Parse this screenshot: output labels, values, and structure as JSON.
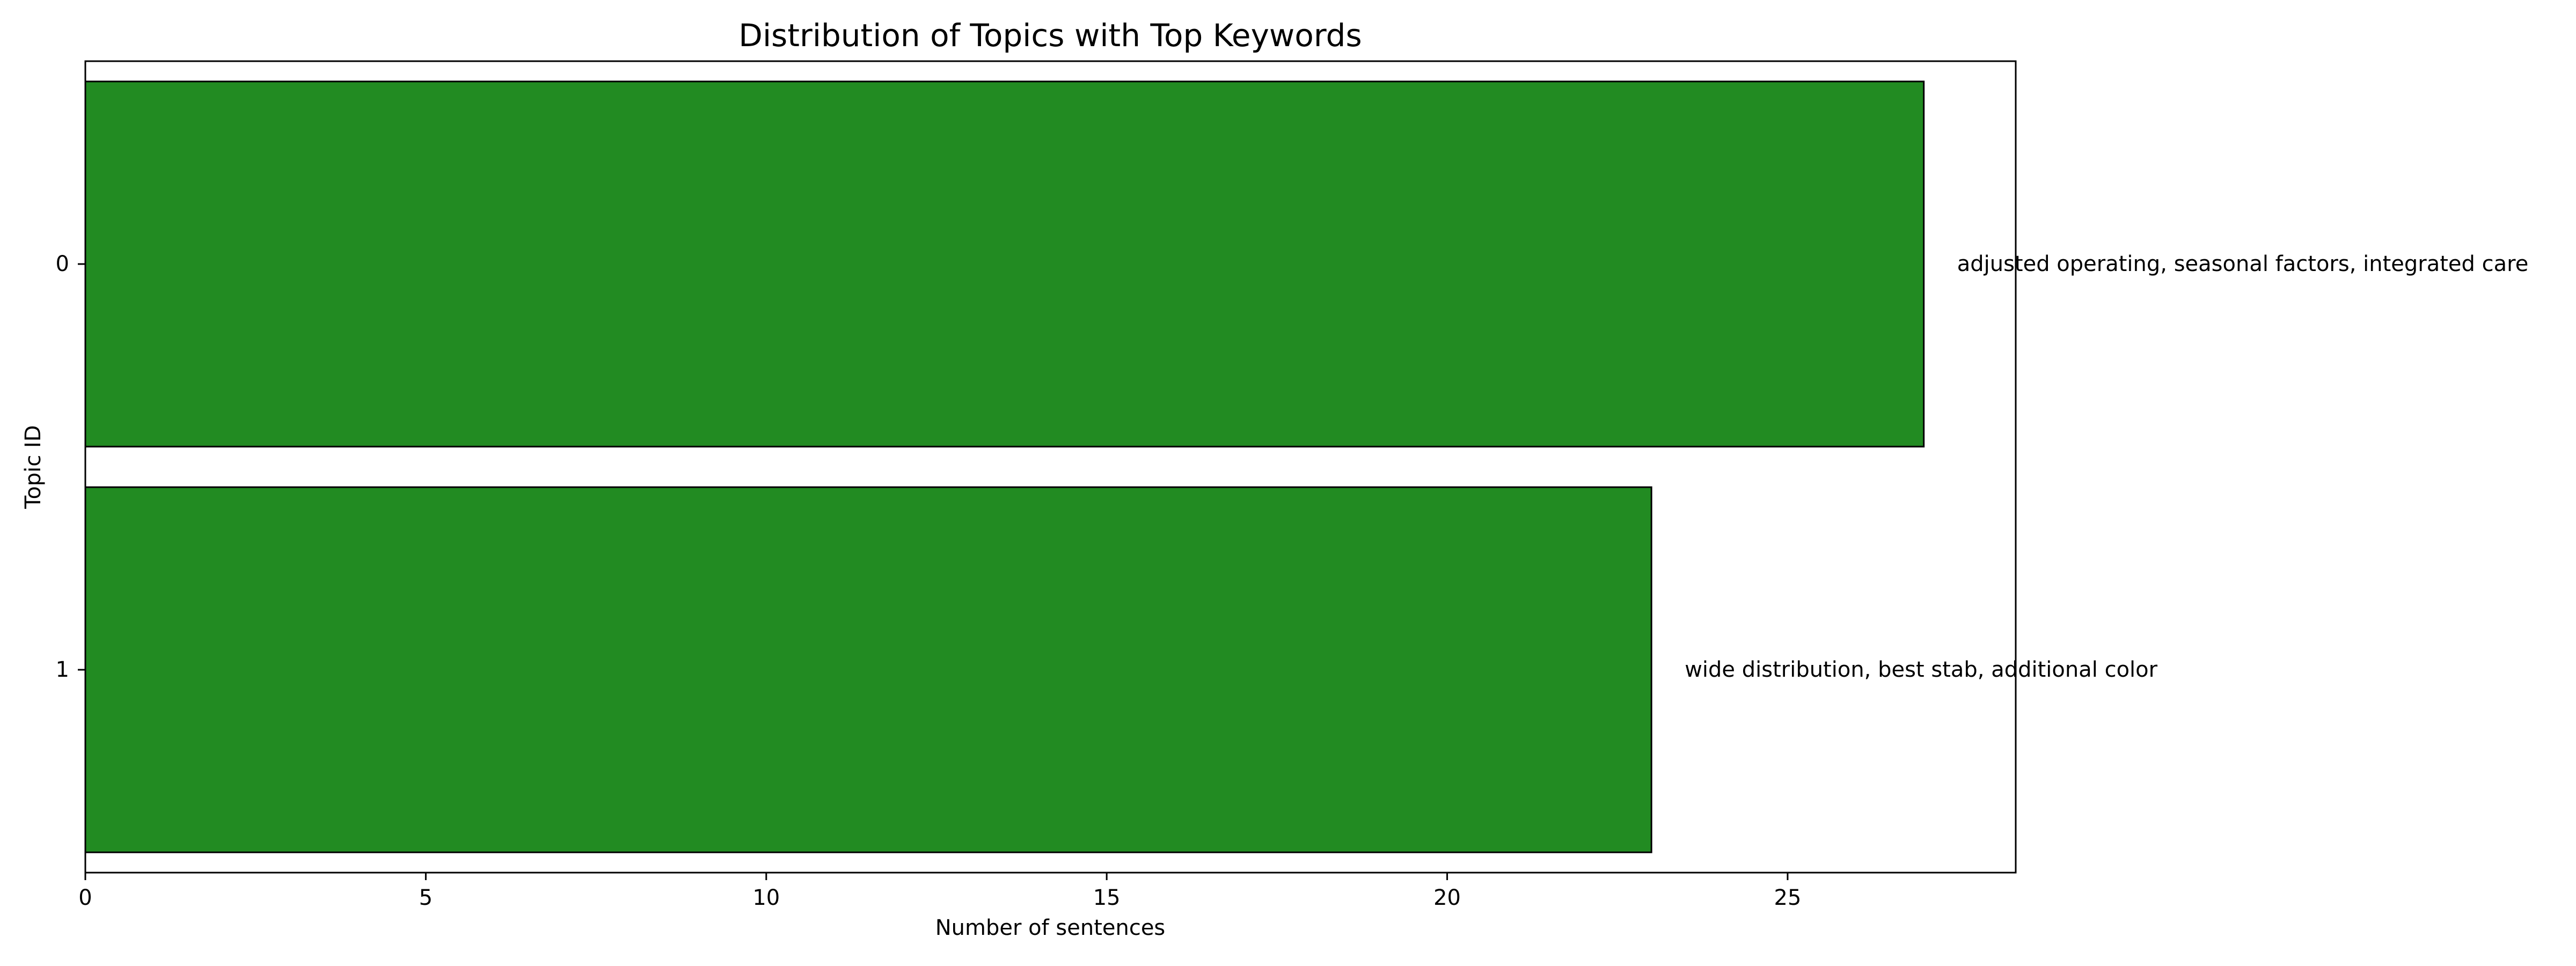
{
  "chart_data": {
    "type": "bar",
    "orientation": "horizontal",
    "title": "Distribution of Topics with Top Keywords",
    "xlabel": "Number of sentences",
    "ylabel": "Topic ID",
    "categories": [
      "0",
      "1"
    ],
    "values": [
      27,
      23
    ],
    "annotations": [
      "adjusted operating, seasonal factors, integrated care",
      "wide distribution, best stab, additional color"
    ],
    "xlim": [
      0,
      28.35
    ],
    "xticks": [
      0,
      5,
      10,
      15,
      20,
      25
    ],
    "grid": false,
    "bar_color": "#228b22",
    "edge_color": "#000000"
  }
}
